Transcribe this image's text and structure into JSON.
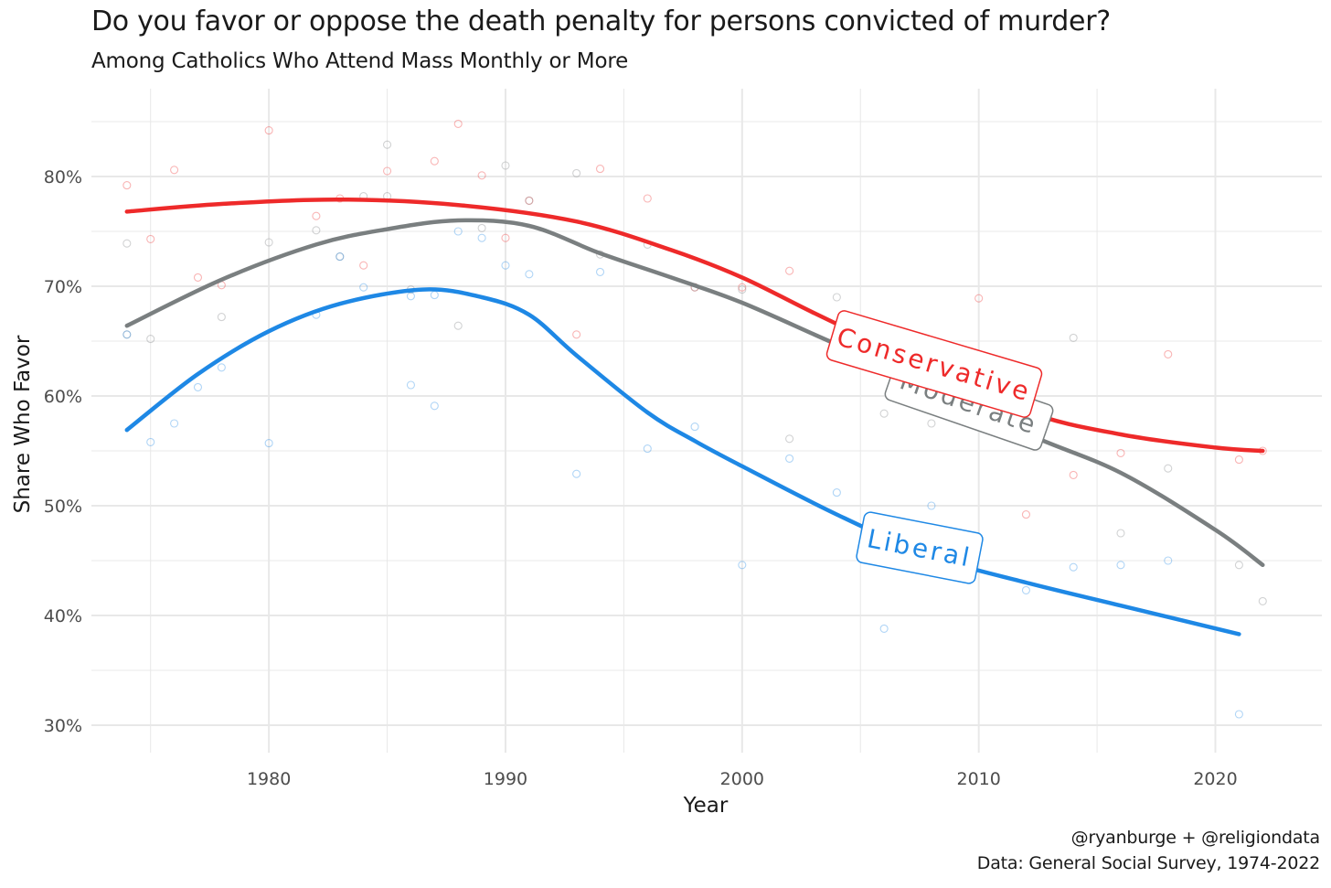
{
  "chart_data": {
    "type": "line",
    "title": "Do you favor or oppose the death penalty for persons convicted of murder?",
    "subtitle": "Among Catholics Who Attend Mass Monthly or More",
    "xlabel": "Year",
    "ylabel": "Share Who Favor",
    "xlim": [
      1972.5,
      2024.5
    ],
    "ylim": [
      27.5,
      88
    ],
    "x_ticks": [
      1980,
      1990,
      2000,
      2010,
      2020
    ],
    "x_tick_labels": [
      "1980",
      "1990",
      "2000",
      "2010",
      "2020"
    ],
    "y_ticks": [
      30,
      40,
      50,
      60,
      70,
      80
    ],
    "y_tick_labels": [
      "30%",
      "40%",
      "50%",
      "60%",
      "70%",
      "80%"
    ],
    "colors": {
      "Conservative": "#ee2a2a",
      "Moderate": "#7a7f80",
      "Liberal": "#1e88e5",
      "grid": "#e8e8e8"
    },
    "series": [
      {
        "name": "Conservative",
        "label": "Conservative",
        "trend": [
          [
            1974,
            76.8
          ],
          [
            1978,
            77.5
          ],
          [
            1983,
            77.9
          ],
          [
            1988,
            77.4
          ],
          [
            1993,
            75.9
          ],
          [
            1997,
            73.3
          ],
          [
            2000,
            70.8
          ],
          [
            2003,
            67.6
          ],
          [
            2007,
            63.5
          ],
          [
            2012,
            58.6
          ],
          [
            2016,
            56.5
          ],
          [
            2020,
            55.3
          ],
          [
            2022,
            55.0
          ]
        ],
        "points": [
          [
            1974,
            79.2
          ],
          [
            1975,
            74.3
          ],
          [
            1976,
            80.6
          ],
          [
            1977,
            70.8
          ],
          [
            1978,
            70.1
          ],
          [
            1980,
            84.2
          ],
          [
            1982,
            76.4
          ],
          [
            1983,
            78.0
          ],
          [
            1984,
            71.9
          ],
          [
            1985,
            80.5
          ],
          [
            1987,
            81.4
          ],
          [
            1988,
            84.8
          ],
          [
            1989,
            80.1
          ],
          [
            1990,
            74.4
          ],
          [
            1991,
            77.8
          ],
          [
            1993,
            65.6
          ],
          [
            1994,
            80.7
          ],
          [
            1996,
            78.0
          ],
          [
            1998,
            69.9
          ],
          [
            2000,
            69.9
          ],
          [
            2002,
            71.4
          ],
          [
            2010,
            68.9
          ],
          [
            2012,
            49.2
          ],
          [
            2014,
            52.8
          ],
          [
            2016,
            54.8
          ],
          [
            2018,
            63.8
          ],
          [
            2021,
            54.2
          ],
          [
            2022,
            55.0
          ]
        ]
      },
      {
        "name": "Moderate",
        "label": "Moderate",
        "trend": [
          [
            1974,
            66.4
          ],
          [
            1978,
            70.6
          ],
          [
            1982,
            73.8
          ],
          [
            1985,
            75.2
          ],
          [
            1988,
            76.0
          ],
          [
            1991,
            75.5
          ],
          [
            1994,
            73.0
          ],
          [
            1997,
            70.8
          ],
          [
            2000,
            68.5
          ],
          [
            2004,
            64.7
          ],
          [
            2008,
            61.1
          ],
          [
            2012,
            56.6
          ],
          [
            2016,
            53.0
          ],
          [
            2020,
            47.8
          ],
          [
            2022,
            44.6
          ]
        ],
        "points": [
          [
            1974,
            73.9
          ],
          [
            1974,
            65.6
          ],
          [
            1975,
            65.2
          ],
          [
            1978,
            67.2
          ],
          [
            1980,
            74.0
          ],
          [
            1982,
            75.1
          ],
          [
            1983,
            72.7
          ],
          [
            1984,
            78.2
          ],
          [
            1985,
            82.9
          ],
          [
            1985,
            78.2
          ],
          [
            1986,
            69.7
          ],
          [
            1988,
            66.4
          ],
          [
            1989,
            75.3
          ],
          [
            1990,
            81.0
          ],
          [
            1991,
            77.8
          ],
          [
            1993,
            80.3
          ],
          [
            1994,
            72.9
          ],
          [
            1996,
            73.8
          ],
          [
            1998,
            69.9
          ],
          [
            2000,
            69.7
          ],
          [
            2002,
            56.1
          ],
          [
            2004,
            69.0
          ],
          [
            2006,
            58.4
          ],
          [
            2008,
            57.5
          ],
          [
            2014,
            65.3
          ],
          [
            2016,
            47.5
          ],
          [
            2018,
            53.4
          ],
          [
            2021,
            44.6
          ],
          [
            2022,
            41.3
          ]
        ]
      },
      {
        "name": "Liberal",
        "label": "Liberal",
        "trend": [
          [
            1974,
            56.9
          ],
          [
            1977,
            62.0
          ],
          [
            1980,
            65.9
          ],
          [
            1983,
            68.4
          ],
          [
            1986.5,
            69.7
          ],
          [
            1989,
            69.0
          ],
          [
            1991,
            67.4
          ],
          [
            1993,
            63.7
          ],
          [
            1996,
            58.5
          ],
          [
            1998,
            55.9
          ],
          [
            2000,
            53.6
          ],
          [
            2004,
            49.2
          ],
          [
            2008,
            45.4
          ],
          [
            2012,
            43.0
          ],
          [
            2016,
            40.9
          ],
          [
            2021,
            38.3
          ]
        ],
        "points": [
          [
            1974,
            65.6
          ],
          [
            1975,
            55.8
          ],
          [
            1976,
            57.5
          ],
          [
            1977,
            60.8
          ],
          [
            1978,
            62.6
          ],
          [
            1980,
            55.7
          ],
          [
            1982,
            67.4
          ],
          [
            1983,
            72.7
          ],
          [
            1984,
            69.9
          ],
          [
            1986,
            69.1
          ],
          [
            1986,
            61.0
          ],
          [
            1987,
            69.2
          ],
          [
            1987,
            59.1
          ],
          [
            1988,
            75.0
          ],
          [
            1989,
            74.4
          ],
          [
            1990,
            71.9
          ],
          [
            1991,
            71.1
          ],
          [
            1993,
            52.9
          ],
          [
            1994,
            71.3
          ],
          [
            1996,
            55.2
          ],
          [
            1998,
            57.2
          ],
          [
            2000,
            44.6
          ],
          [
            2002,
            54.3
          ],
          [
            2004,
            51.2
          ],
          [
            2006,
            38.8
          ],
          [
            2008,
            50.0
          ],
          [
            2012,
            42.3
          ],
          [
            2014,
            44.4
          ],
          [
            2016,
            44.6
          ],
          [
            2018,
            45.0
          ],
          [
            2021,
            31.0
          ]
        ]
      }
    ]
  },
  "caption": {
    "line1": "@ryanburge + @religiondata",
    "line2": "Data: General Social Survey, 1974-2022"
  }
}
